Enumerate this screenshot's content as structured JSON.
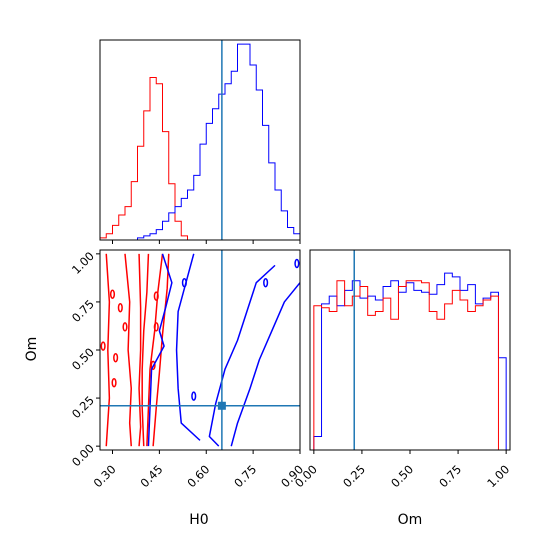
{
  "chart_data": {
    "type": "corner",
    "parameters": [
      "H0",
      "Om"
    ],
    "truths": {
      "H0": 0.65,
      "Om": 0.21
    },
    "colors": {
      "series_a": "#ff0000",
      "series_b": "#0000ff",
      "truth": "#1f77b4"
    },
    "axes": {
      "H0": {
        "label": "H0",
        "range": [
          0.26,
          0.9
        ],
        "ticks": [
          "0.30",
          "0.45",
          "0.60",
          "0.75",
          "0.90"
        ]
      },
      "Om": {
        "label": "Om",
        "range": [
          -0.02,
          1.02
        ],
        "ticks": [
          "0.00",
          "0.25",
          "0.50",
          "0.75",
          "1.00"
        ]
      }
    },
    "marginals": {
      "H0": {
        "edges": [
          0.26,
          0.28,
          0.3,
          0.32,
          0.34,
          0.36,
          0.38,
          0.4,
          0.42,
          0.44,
          0.46,
          0.48,
          0.5,
          0.52,
          0.54,
          0.56,
          0.58,
          0.6,
          0.62,
          0.64,
          0.66,
          0.68,
          0.7,
          0.72,
          0.74,
          0.76,
          0.78,
          0.8,
          0.82,
          0.84,
          0.86,
          0.88,
          0.9
        ],
        "series": [
          {
            "color": "#ff0000",
            "counts": [
              0.01,
              0.03,
              0.07,
              0.12,
              0.16,
              0.28,
              0.45,
              0.62,
              0.78,
              0.75,
              0.52,
              0.27,
              0.09,
              0.02,
              0.0,
              0.0,
              0.0,
              0.0,
              0.0,
              0.0,
              0.0,
              0.0,
              0.0,
              0.0,
              0.0,
              0.0,
              0.0,
              0.0,
              0.0,
              0.0,
              0.0,
              0.0
            ]
          },
          {
            "color": "#0000ff",
            "counts": [
              0.0,
              0.0,
              0.0,
              0.0,
              0.0,
              0.0,
              0.01,
              0.02,
              0.03,
              0.05,
              0.09,
              0.13,
              0.16,
              0.2,
              0.24,
              0.31,
              0.46,
              0.56,
              0.63,
              0.7,
              0.75,
              0.81,
              0.94,
              0.94,
              0.84,
              0.72,
              0.55,
              0.37,
              0.24,
              0.14,
              0.06,
              0.03
            ]
          }
        ]
      },
      "Om": {
        "edges": [
          0.0,
          0.04,
          0.08,
          0.12,
          0.16,
          0.2,
          0.24,
          0.28,
          0.32,
          0.36,
          0.4,
          0.44,
          0.48,
          0.52,
          0.56,
          0.6,
          0.64,
          0.68,
          0.72,
          0.76,
          0.8,
          0.84,
          0.88,
          0.92,
          0.96,
          1.0
        ],
        "series": [
          {
            "color": "#0000ff",
            "counts": [
              0.07,
              0.76,
              0.8,
              0.75,
              0.83,
              0.88,
              0.79,
              0.8,
              0.78,
              0.85,
              0.88,
              0.82,
              0.87,
              0.83,
              0.82,
              0.81,
              0.86,
              0.92,
              0.9,
              0.83,
              0.86,
              0.76,
              0.79,
              0.82,
              0.48
            ]
          },
          {
            "color": "#ff0000",
            "counts": [
              0.75,
              0.74,
              0.72,
              0.88,
              0.75,
              0.8,
              0.85,
              0.7,
              0.72,
              0.79,
              0.68,
              0.85,
              0.88,
              0.88,
              0.87,
              0.72,
              0.68,
              0.76,
              0.83,
              0.78,
              0.72,
              0.75,
              0.78,
              0.8,
              0.0
            ]
          }
        ]
      }
    },
    "contours": [
      {
        "color": "#ff0000",
        "lines": [
          [
            [
              0.28,
              1.0
            ],
            [
              0.29,
              0.75
            ],
            [
              0.285,
              0.5
            ],
            [
              0.29,
              0.25
            ],
            [
              0.28,
              0.0
            ]
          ],
          [
            [
              0.34,
              1.0
            ],
            [
              0.355,
              0.75
            ],
            [
              0.35,
              0.5
            ],
            [
              0.36,
              0.3
            ],
            [
              0.355,
              0.12
            ],
            [
              0.36,
              0.0
            ]
          ],
          [
            [
              0.385,
              1.0
            ],
            [
              0.39,
              0.72
            ],
            [
              0.39,
              0.5
            ],
            [
              0.385,
              0.3
            ],
            [
              0.39,
              0.1
            ],
            [
              0.385,
              0.0
            ]
          ],
          [
            [
              0.46,
              1.0
            ],
            [
              0.445,
              0.8
            ],
            [
              0.435,
              0.6
            ],
            [
              0.42,
              0.4
            ],
            [
              0.415,
              0.2
            ],
            [
              0.41,
              0.0
            ]
          ],
          [
            [
              0.48,
              1.0
            ],
            [
              0.475,
              0.82
            ],
            [
              0.46,
              0.58
            ],
            [
              0.45,
              0.38
            ],
            [
              0.44,
              0.2
            ],
            [
              0.43,
              0.0
            ]
          ],
          [
            [
              0.415,
              1.0
            ],
            [
              0.41,
              0.8
            ],
            [
              0.4,
              0.6
            ],
            [
              0.395,
              0.4
            ],
            [
              0.395,
              0.2
            ],
            [
              0.4,
              0.0
            ]
          ]
        ],
        "islands": [
          [
            0.27,
            0.52
          ],
          [
            0.3,
            0.79
          ],
          [
            0.325,
            0.72
          ],
          [
            0.31,
            0.46
          ],
          [
            0.305,
            0.33
          ],
          [
            0.44,
            0.78
          ],
          [
            0.34,
            0.62
          ],
          [
            0.44,
            0.62
          ],
          [
            0.43,
            0.42
          ]
        ]
      },
      {
        "color": "#0000ff",
        "lines": [
          [
            [
              0.46,
              1.0
            ],
            [
              0.49,
              0.85
            ],
            [
              0.47,
              0.72
            ],
            [
              0.45,
              0.6
            ],
            [
              0.465,
              0.52
            ],
            [
              0.425,
              0.4
            ],
            [
              0.42,
              0.2
            ],
            [
              0.415,
              0.0
            ]
          ],
          [
            [
              0.56,
              1.0
            ],
            [
              0.54,
              0.88
            ],
            [
              0.51,
              0.7
            ],
            [
              0.505,
              0.5
            ],
            [
              0.51,
              0.3
            ],
            [
              0.52,
              0.12
            ],
            [
              0.58,
              0.03
            ]
          ],
          [
            [
              0.82,
              0.94
            ],
            [
              0.76,
              0.85
            ],
            [
              0.73,
              0.7
            ],
            [
              0.7,
              0.55
            ],
            [
              0.66,
              0.4
            ],
            [
              0.63,
              0.22
            ],
            [
              0.61,
              0.05
            ],
            [
              0.64,
              0.0
            ]
          ],
          [
            [
              0.9,
              0.85
            ],
            [
              0.85,
              0.75
            ],
            [
              0.81,
              0.6
            ],
            [
              0.77,
              0.45
            ],
            [
              0.74,
              0.3
            ],
            [
              0.7,
              0.12
            ],
            [
              0.68,
              0.0
            ]
          ]
        ],
        "islands": [
          [
            0.53,
            0.85
          ],
          [
            0.56,
            0.26
          ],
          [
            0.89,
            0.95
          ],
          [
            0.79,
            0.85
          ]
        ]
      }
    ]
  }
}
